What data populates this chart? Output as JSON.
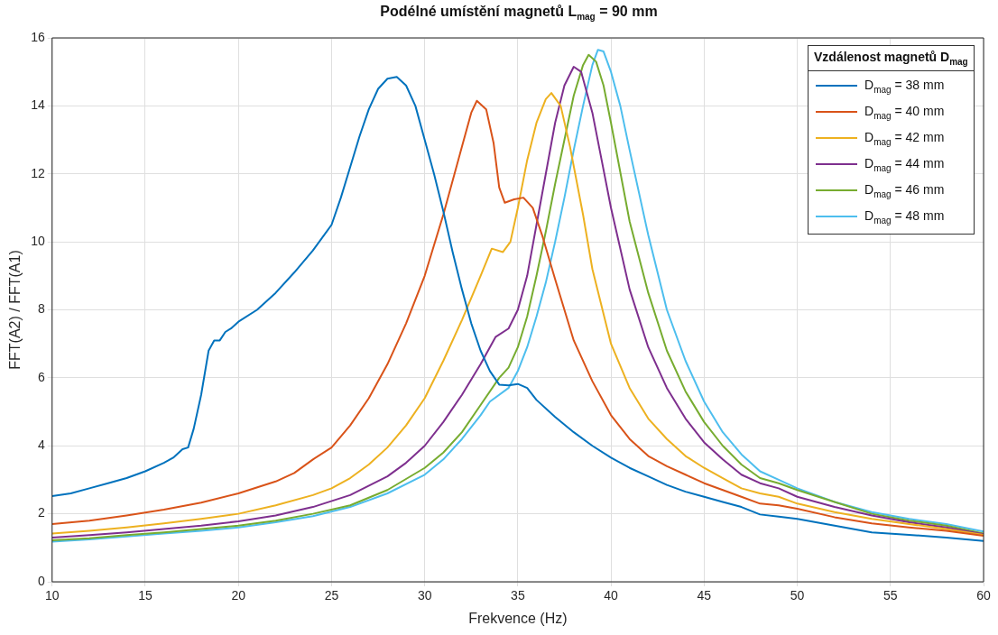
{
  "chart_data": {
    "type": "line",
    "title": "Podélné umístění magnetů L$_{mag}$ = 90 mm",
    "xlabel": "Frekvence (Hz)",
    "ylabel": "FFT(A2) / FFT(A1)",
    "legend_title": "Vzdálenost magnetů D$_{mag}$",
    "xlim": [
      10,
      60
    ],
    "xticks": [
      10,
      15,
      20,
      25,
      30,
      35,
      40,
      45,
      50,
      55,
      60
    ],
    "ylim": [
      0,
      16
    ],
    "yticks": [
      0,
      2,
      4,
      6,
      8,
      10,
      12,
      14,
      16
    ],
    "grid": true,
    "legend": "top right",
    "series": [
      {
        "name": "D$_{mag}$ = 38 mm",
        "color": "#0072bd",
        "x": [
          10,
          11,
          12,
          13,
          14,
          15,
          16,
          16.5,
          17,
          17.3,
          17.6,
          18,
          18.4,
          18.7,
          19,
          19.3,
          19.6,
          20,
          21,
          22,
          23,
          24,
          25,
          25.5,
          26,
          26.5,
          27,
          27.5,
          28,
          28.5,
          29,
          29.5,
          30,
          30.5,
          31,
          31.5,
          32,
          32.5,
          33,
          33.5,
          34,
          34.5,
          35,
          35.5,
          36,
          37,
          38,
          39,
          40,
          41,
          42,
          43,
          44,
          45,
          46,
          47,
          48,
          49,
          50,
          52,
          54,
          56,
          58,
          60
        ],
        "values": [
          2.52,
          2.6,
          2.75,
          2.9,
          3.05,
          3.25,
          3.5,
          3.65,
          3.9,
          3.95,
          4.5,
          5.5,
          6.8,
          7.1,
          7.1,
          7.35,
          7.45,
          7.65,
          8.0,
          8.5,
          9.1,
          9.75,
          10.5,
          11.3,
          12.2,
          13.1,
          13.9,
          14.5,
          14.8,
          14.85,
          14.6,
          14.0,
          13.0,
          12.0,
          10.9,
          9.7,
          8.6,
          7.6,
          6.8,
          6.2,
          5.8,
          5.78,
          5.82,
          5.7,
          5.35,
          4.85,
          4.4,
          4.0,
          3.65,
          3.35,
          3.1,
          2.85,
          2.65,
          2.5,
          2.35,
          2.2,
          1.98,
          1.92,
          1.85,
          1.65,
          1.45,
          1.38,
          1.3,
          1.2
        ]
      },
      {
        "name": "D$_{mag}$ = 40 mm",
        "color": "#d95319",
        "x": [
          10,
          12,
          14,
          16,
          18,
          20,
          22,
          23,
          24,
          25,
          26,
          27,
          28,
          29,
          30,
          31,
          31.5,
          32,
          32.5,
          32.8,
          33.3,
          33.7,
          34,
          34.3,
          34.8,
          35.3,
          35.8,
          36.3,
          37,
          38,
          39,
          40,
          41,
          42,
          43,
          44,
          45,
          46,
          47,
          48,
          49,
          50,
          52,
          54,
          56,
          58,
          60
        ],
        "values": [
          1.7,
          1.8,
          1.95,
          2.12,
          2.33,
          2.6,
          2.95,
          3.2,
          3.6,
          3.95,
          4.6,
          5.4,
          6.4,
          7.6,
          9.0,
          10.8,
          11.8,
          12.8,
          13.8,
          14.15,
          13.9,
          12.9,
          11.6,
          11.15,
          11.25,
          11.3,
          11.0,
          10.2,
          8.9,
          7.1,
          5.9,
          4.9,
          4.2,
          3.7,
          3.4,
          3.15,
          2.9,
          2.7,
          2.5,
          2.3,
          2.25,
          2.15,
          1.9,
          1.72,
          1.6,
          1.5,
          1.35
        ]
      },
      {
        "name": "D$_{mag}$ = 42 mm",
        "color": "#edb120",
        "x": [
          10,
          12,
          14,
          16,
          18,
          20,
          22,
          24,
          25,
          26,
          27,
          28,
          29,
          30,
          31,
          32,
          33,
          33.6,
          34.2,
          34.6,
          35,
          35.5,
          36,
          36.5,
          36.8,
          37.3,
          37.8,
          38.5,
          39,
          40,
          41,
          42,
          43,
          44,
          45,
          46,
          47,
          48,
          49,
          50,
          52,
          54,
          56,
          58,
          60
        ],
        "values": [
          1.42,
          1.5,
          1.6,
          1.72,
          1.85,
          2.0,
          2.25,
          2.55,
          2.75,
          3.05,
          3.45,
          3.95,
          4.6,
          5.4,
          6.5,
          7.7,
          9.0,
          9.8,
          9.7,
          10.0,
          11.0,
          12.4,
          13.5,
          14.2,
          14.38,
          14.0,
          12.8,
          10.8,
          9.2,
          7.0,
          5.7,
          4.8,
          4.2,
          3.7,
          3.35,
          3.05,
          2.75,
          2.6,
          2.5,
          2.3,
          2.05,
          1.85,
          1.7,
          1.55,
          1.38
        ]
      },
      {
        "name": "D$_{mag}$ = 44 mm",
        "color": "#7e2f8e",
        "x": [
          10,
          12,
          14,
          16,
          18,
          20,
          22,
          24,
          26,
          28,
          29,
          30,
          31,
          32,
          33,
          33.8,
          34.5,
          35,
          35.5,
          36,
          36.5,
          37,
          37.5,
          38,
          38.4,
          39,
          39.5,
          40,
          41,
          42,
          43,
          44,
          45,
          46,
          47,
          48,
          49,
          50,
          52,
          54,
          56,
          58,
          60
        ],
        "values": [
          1.3,
          1.37,
          1.45,
          1.55,
          1.65,
          1.78,
          1.95,
          2.2,
          2.55,
          3.1,
          3.5,
          4.0,
          4.7,
          5.5,
          6.4,
          7.2,
          7.45,
          8.0,
          9.0,
          10.5,
          12.0,
          13.5,
          14.6,
          15.15,
          15.0,
          13.8,
          12.4,
          11.0,
          8.6,
          6.9,
          5.7,
          4.8,
          4.1,
          3.6,
          3.15,
          2.9,
          2.75,
          2.5,
          2.2,
          1.95,
          1.75,
          1.6,
          1.4
        ]
      },
      {
        "name": "D$_{mag}$ = 46 mm",
        "color": "#77ac30",
        "x": [
          10,
          12,
          14,
          16,
          18,
          20,
          22,
          24,
          26,
          28,
          30,
          31,
          32,
          33,
          34,
          34.5,
          35,
          35.5,
          36,
          36.5,
          37,
          37.5,
          38,
          38.5,
          38.8,
          39.2,
          39.6,
          40,
          41,
          42,
          43,
          44,
          45,
          46,
          47,
          48,
          49,
          50,
          52,
          54,
          56,
          58,
          60
        ],
        "values": [
          1.22,
          1.28,
          1.37,
          1.45,
          1.55,
          1.65,
          1.8,
          2.0,
          2.25,
          2.7,
          3.35,
          3.8,
          4.4,
          5.2,
          6.0,
          6.3,
          6.9,
          7.8,
          9.0,
          10.3,
          11.7,
          13.0,
          14.3,
          15.2,
          15.5,
          15.3,
          14.6,
          13.5,
          10.6,
          8.5,
          6.8,
          5.6,
          4.7,
          4.0,
          3.45,
          3.05,
          2.9,
          2.7,
          2.35,
          2.0,
          1.8,
          1.65,
          1.42
        ]
      },
      {
        "name": "D$_{mag}$ = 48 mm",
        "color": "#4dbeee",
        "x": [
          10,
          12,
          14,
          16,
          18,
          20,
          22,
          24,
          26,
          28,
          30,
          31,
          32,
          33,
          33.5,
          34.5,
          35,
          35.5,
          36,
          36.5,
          37,
          37.5,
          38,
          38.5,
          39,
          39.3,
          39.6,
          40,
          40.5,
          41,
          42,
          43,
          44,
          45,
          46,
          47,
          48,
          49,
          50,
          52,
          54,
          56,
          58,
          60
        ],
        "values": [
          1.18,
          1.25,
          1.33,
          1.42,
          1.5,
          1.6,
          1.75,
          1.93,
          2.2,
          2.6,
          3.15,
          3.6,
          4.2,
          4.9,
          5.3,
          5.7,
          6.2,
          6.9,
          7.8,
          8.8,
          10.0,
          11.3,
          12.7,
          14.0,
          15.2,
          15.65,
          15.6,
          15.0,
          14.0,
          12.7,
          10.2,
          8.0,
          6.5,
          5.3,
          4.4,
          3.75,
          3.25,
          3.0,
          2.75,
          2.35,
          2.05,
          1.85,
          1.7,
          1.48
        ]
      }
    ]
  }
}
